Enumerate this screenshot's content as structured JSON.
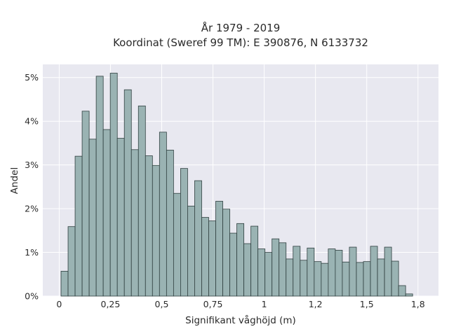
{
  "chart_data": {
    "type": "bar",
    "title_line1": "År 1979 - 2019",
    "title_line2": "Koordinat (Sweref 99 TM): E 390876, N 6133732",
    "xlabel": "Signifikant våghöjd (m)",
    "ylabel": "Andel",
    "xlim": [
      -0.08,
      1.85
    ],
    "ylim": [
      0,
      5.3
    ],
    "x_ticks": [
      {
        "value": 0,
        "label": "0"
      },
      {
        "value": 0.25,
        "label": "0,25"
      },
      {
        "value": 0.5,
        "label": "0,5"
      },
      {
        "value": 0.75,
        "label": "0,75"
      },
      {
        "value": 1,
        "label": "1"
      },
      {
        "value": 1.25,
        "label": "1,2"
      },
      {
        "value": 1.5,
        "label": "1,5"
      },
      {
        "value": 1.75,
        "label": "1,8"
      }
    ],
    "y_ticks": [
      {
        "value": 0,
        "label": "0%"
      },
      {
        "value": 1,
        "label": "1%"
      },
      {
        "value": 2,
        "label": "2%"
      },
      {
        "value": 3,
        "label": "3%"
      },
      {
        "value": 4,
        "label": "4%"
      },
      {
        "value": 5,
        "label": "5%"
      }
    ],
    "grid": true,
    "bin_width": 0.0343,
    "bin_start": 0.009,
    "values": [
      0.57,
      1.59,
      3.2,
      4.23,
      3.59,
      5.03,
      3.81,
      5.1,
      3.61,
      4.72,
      3.35,
      4.35,
      3.21,
      2.99,
      3.75,
      3.34,
      2.35,
      2.92,
      2.06,
      2.64,
      1.8,
      1.72,
      2.17,
      1.99,
      1.44,
      1.66,
      1.2,
      1.6,
      1.08,
      1.0,
      1.31,
      1.22,
      0.85,
      1.14,
      0.82,
      1.1,
      0.79,
      0.75,
      1.08,
      1.05,
      0.78,
      1.12,
      0.77,
      0.79,
      1.14,
      0.85,
      1.12,
      0.8,
      0.24,
      0.05
    ]
  },
  "colors": {
    "background": "#e8e8f0",
    "bar_fill": "#9ab3b3",
    "bar_stroke": "#2f3f3f",
    "grid": "#ffffff",
    "text": "#2a2a2a"
  }
}
